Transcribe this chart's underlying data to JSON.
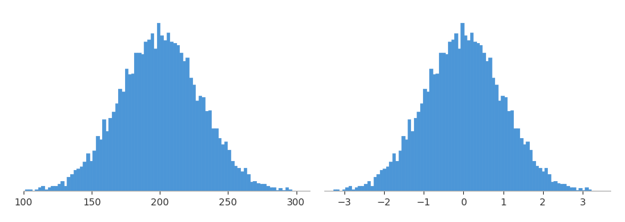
{
  "mean": 200,
  "std": 30,
  "n_samples": 10000,
  "n_bins": 100,
  "bar_color": "#4c96d7",
  "edge_color": "#4c96d7",
  "background_color": "white",
  "figsize": [
    9.0,
    3.2
  ],
  "dpi": 100,
  "random_seed": 42,
  "xlim1": [
    100,
    310
  ],
  "xlim2": [
    -3.5,
    3.7
  ],
  "xticks1": [
    100,
    150,
    200,
    250,
    300
  ],
  "xticks2": [
    -3,
    -2,
    -1,
    0,
    1,
    2,
    3
  ],
  "subplot_hspace": 0.05
}
